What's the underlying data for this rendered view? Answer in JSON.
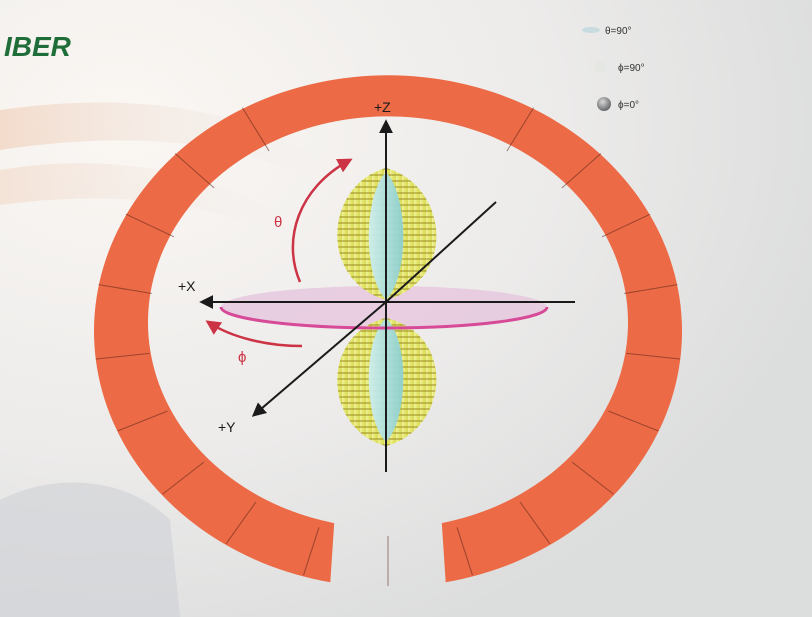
{
  "header": {
    "title_fragment": "IBER"
  },
  "legend": [
    {
      "label": "θ=90°",
      "swatch": "#c8dce0",
      "icon": "flat-disc-icon"
    },
    {
      "label": "ϕ=90°",
      "swatch": "#e4e7e2",
      "icon": "light-dot-icon"
    },
    {
      "label": "ϕ=0°",
      "swatch": "#7c7e80",
      "icon": "sphere-icon"
    }
  ],
  "axes": {
    "z": "+Z",
    "x": "+X",
    "y": "+Y"
  },
  "angles": {
    "theta": "θ",
    "phi": "ϕ"
  },
  "colors": {
    "chamber_ring": "#ec6a45",
    "ring_divider": "#5a2418",
    "lobe_yellow": "#e6e872",
    "lobe_hatch": "#9a8a22",
    "lobe_cyan": "#a8dad8",
    "disc_pink": "#e6c8de",
    "disc_rim": "#d64a98",
    "angle_arrow": "#cc3344",
    "axis": "#1a1a1a",
    "title": "#1f6e3a"
  }
}
